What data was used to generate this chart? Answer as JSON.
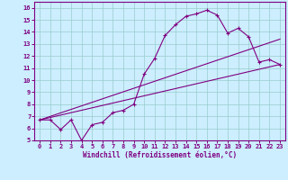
{
  "xlabel": "Windchill (Refroidissement éolien,°C)",
  "background_color": "#cceeff",
  "line_color": "#800080",
  "grid_color": "#99cccc",
  "xlim": [
    -0.5,
    23.5
  ],
  "ylim": [
    5,
    16.5
  ],
  "xticks": [
    0,
    1,
    2,
    3,
    4,
    5,
    6,
    7,
    8,
    9,
    10,
    11,
    12,
    13,
    14,
    15,
    16,
    17,
    18,
    19,
    20,
    21,
    22,
    23
  ],
  "yticks": [
    5,
    6,
    7,
    8,
    9,
    10,
    11,
    12,
    13,
    14,
    15,
    16
  ],
  "curve1_x": [
    0,
    1,
    2,
    3,
    4,
    5,
    6,
    7,
    8,
    9,
    10,
    11,
    12,
    13,
    14,
    15,
    16,
    17,
    18,
    19,
    20,
    21,
    22,
    23
  ],
  "curve1_y": [
    6.7,
    6.7,
    5.9,
    6.7,
    5.0,
    6.3,
    6.5,
    7.3,
    7.5,
    8.0,
    10.5,
    11.8,
    13.7,
    14.6,
    15.3,
    15.5,
    15.8,
    15.4,
    13.9,
    14.3,
    13.6,
    11.5,
    11.7,
    11.3
  ],
  "curve2_x": [
    0,
    23
  ],
  "curve2_y": [
    6.7,
    13.4
  ],
  "curve3_x": [
    0,
    23
  ],
  "curve3_y": [
    6.7,
    11.3
  ],
  "marker": "+"
}
